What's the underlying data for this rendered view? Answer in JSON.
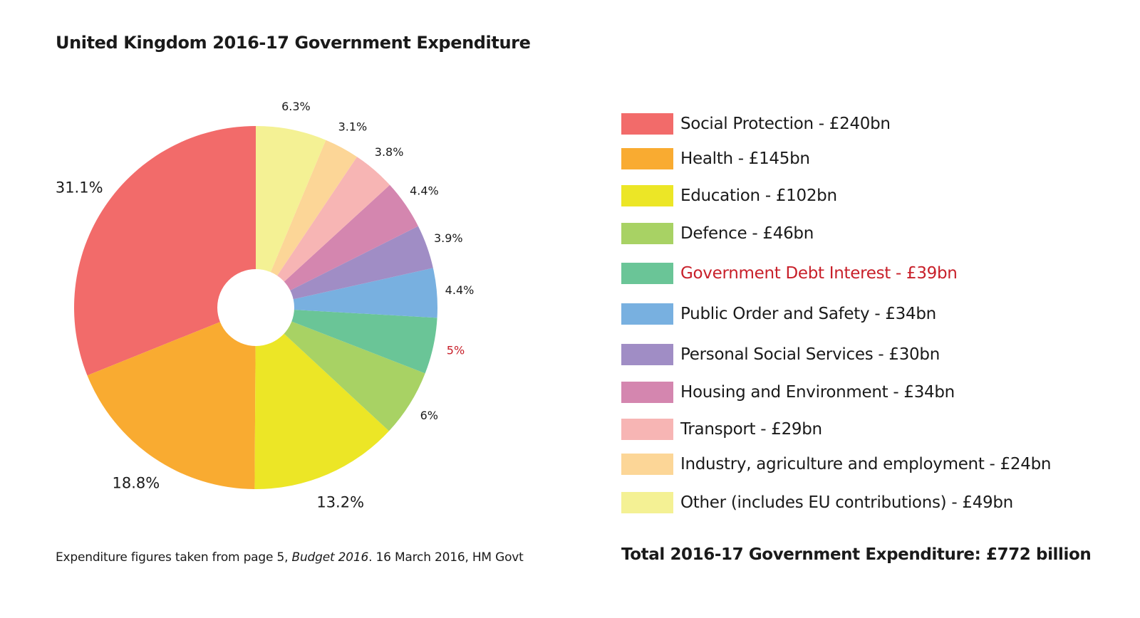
{
  "chart_data": {
    "type": "pie",
    "title": "United Kingdom 2016-17 Government Expenditure",
    "donut": true,
    "slices": [
      {
        "label": "Social Protection - £240bn",
        "percent_label": "31.1%",
        "value": 31.1,
        "color": "#f26b6a"
      },
      {
        "label": "Health - £145bn",
        "percent_label": "18.8%",
        "value": 18.8,
        "color": "#f9ab31"
      },
      {
        "label": "Education - £102bn",
        "percent_label": "13.2%",
        "value": 13.2,
        "color": "#ece626"
      },
      {
        "label": "Defence - £46bn",
        "percent_label": "6%",
        "value": 6,
        "color": "#a8d264"
      },
      {
        "label": "Government Debt Interest - £39bn",
        "percent_label": "5%",
        "value": 5,
        "color": "#6ac597",
        "highlight_color": "#c8202a"
      },
      {
        "label": "Public Order and Safety - £34bn",
        "percent_label": "4.4%",
        "value": 4.4,
        "color": "#78b0e0"
      },
      {
        "label": "Personal Social Services - £30bn",
        "percent_label": "3.9%",
        "value": 3.9,
        "color": "#a08dc5"
      },
      {
        "label": "Housing and Environment - £34bn",
        "percent_label": "4.4%",
        "value": 4.4,
        "color": "#d486af"
      },
      {
        "label": "Transport - £29bn",
        "percent_label": "3.8%",
        "value": 3.8,
        "color": "#f7b5b4"
      },
      {
        "label": "Industry, agriculture and employment - £24bn",
        "percent_label": "3.1%",
        "value": 3.1,
        "color": "#fcd697"
      },
      {
        "label": "Other (includes EU contributions) - £49bn",
        "percent_label": "6.3%",
        "value": 6.3,
        "color": "#f4f194"
      }
    ],
    "legend_position": "right"
  },
  "footnote": {
    "before": "Expenditure figures taken from page 5, ",
    "publication": "Budget 2016",
    "after": ". 16 March 2016, HM Govt"
  },
  "total": "Total 2016-17 Government Expenditure: £772 billion"
}
